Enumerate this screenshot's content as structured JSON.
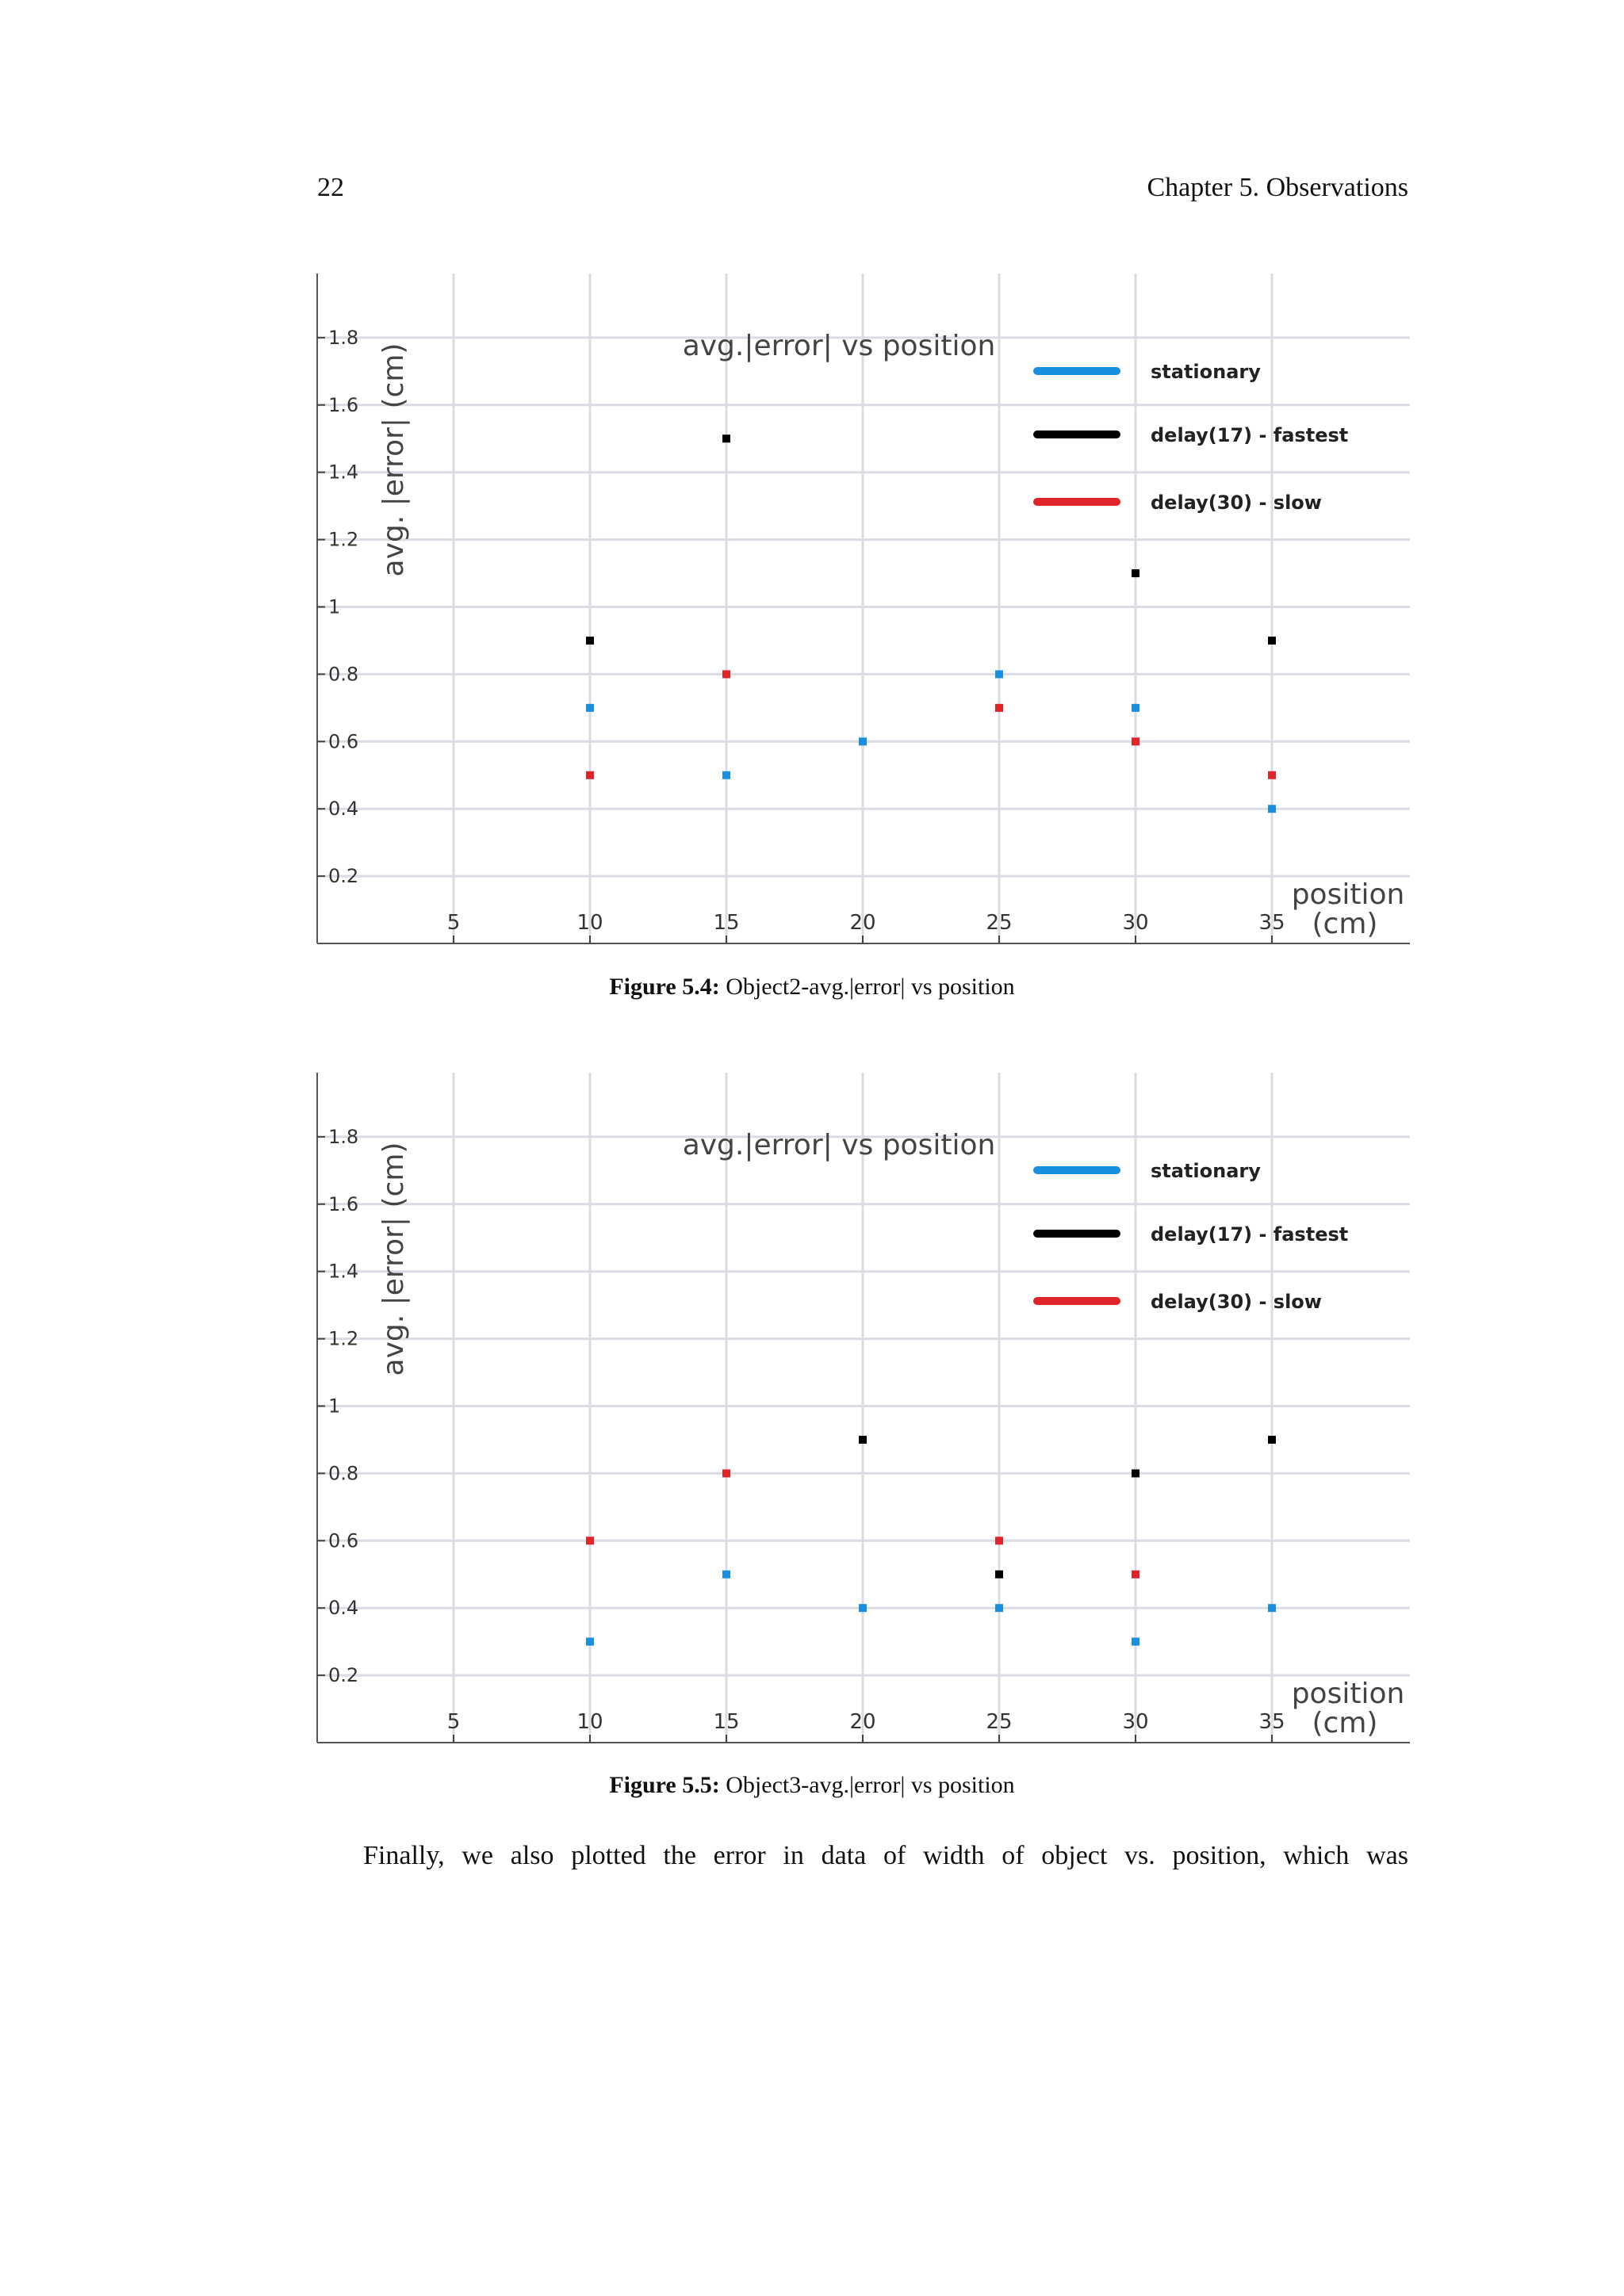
{
  "header": {
    "page_number": "22",
    "running_head": "Chapter 5.  Observations"
  },
  "figures": [
    {
      "caption_label": "Figure 5.4:",
      "caption_text": "Object2-avg.|error| vs position"
    },
    {
      "caption_label": "Figure 5.5:",
      "caption_text": "Object3-avg.|error| vs position"
    }
  ],
  "body": {
    "paragraph": "Finally, we also plotted the error in data of width of object vs. position, which was"
  },
  "chart_data": [
    {
      "type": "scatter",
      "title": "avg.|error| vs position",
      "xlabel_line1": "position",
      "xlabel_line2": "(cm)",
      "ylabel": "avg.  |error| (cm)",
      "x_ticks": [
        "5",
        "10",
        "15",
        "20",
        "25",
        "30",
        "35"
      ],
      "y_ticks": [
        "0.2",
        "0.4",
        "0.6",
        "0.8",
        "1",
        "1.2",
        "1.4",
        "1.6",
        "1.8"
      ],
      "xlim": [
        0,
        40
      ],
      "ylim": [
        0,
        2.0
      ],
      "grid": true,
      "legend_position": "top-right",
      "series": [
        {
          "name": "stationary",
          "color": "#1a8fe0",
          "points": [
            [
              10,
              0.7
            ],
            [
              15,
              0.5
            ],
            [
              20,
              0.6
            ],
            [
              25,
              0.8
            ],
            [
              30,
              0.7
            ],
            [
              35,
              0.4
            ]
          ]
        },
        {
          "name": "delay(17) - fastest",
          "color": "#000000",
          "points": [
            [
              10,
              0.9
            ],
            [
              15,
              1.5
            ],
            [
              30,
              1.1
            ],
            [
              35,
              0.9
            ]
          ]
        },
        {
          "name": "delay(30) - slow",
          "color": "#e0242a",
          "points": [
            [
              10,
              0.5
            ],
            [
              15,
              0.8
            ],
            [
              25,
              0.7
            ],
            [
              30,
              0.6
            ],
            [
              35,
              0.5
            ]
          ]
        }
      ]
    },
    {
      "type": "scatter",
      "title": "avg.|error| vs position",
      "xlabel_line1": "position",
      "xlabel_line2": "(cm)",
      "ylabel": "avg.  |error| (cm)",
      "x_ticks": [
        "5",
        "10",
        "15",
        "20",
        "25",
        "30",
        "35"
      ],
      "y_ticks": [
        "0.2",
        "0.4",
        "0.6",
        "0.8",
        "1",
        "1.2",
        "1.4",
        "1.6",
        "1.8"
      ],
      "xlim": [
        0,
        40
      ],
      "ylim": [
        0,
        2.0
      ],
      "grid": true,
      "legend_position": "top-right",
      "series": [
        {
          "name": "stationary",
          "color": "#1a8fe0",
          "points": [
            [
              10,
              0.3
            ],
            [
              15,
              0.5
            ],
            [
              20,
              0.4
            ],
            [
              25,
              0.4
            ],
            [
              30,
              0.3
            ],
            [
              35,
              0.4
            ]
          ]
        },
        {
          "name": "delay(17) - fastest",
          "color": "#000000",
          "points": [
            [
              20,
              0.9
            ],
            [
              25,
              0.5
            ],
            [
              30,
              0.8
            ],
            [
              35,
              0.9
            ]
          ]
        },
        {
          "name": "delay(30) - slow",
          "color": "#e0242a",
          "points": [
            [
              10,
              0.6
            ],
            [
              15,
              0.8
            ],
            [
              25,
              0.6
            ],
            [
              30,
              0.5
            ]
          ]
        }
      ]
    }
  ]
}
